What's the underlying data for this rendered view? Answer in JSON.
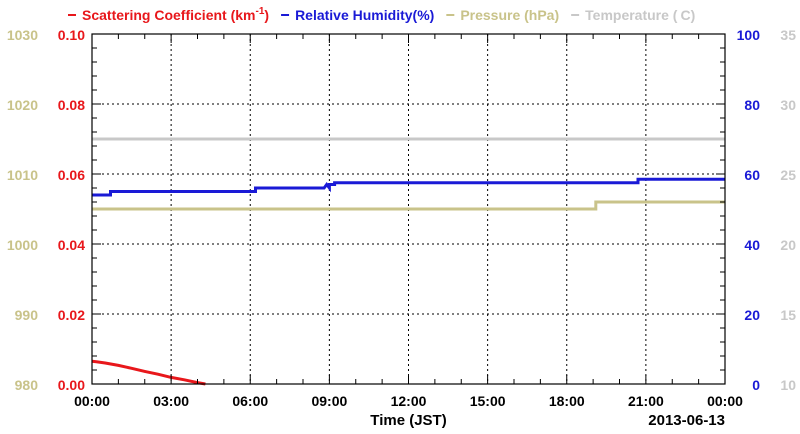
{
  "chart_data": {
    "type": "line",
    "legend": [
      {
        "key": "scattering",
        "color": "#e8171b",
        "text": "Scattering Coefficient (km",
        "sup": "-1",
        "tail": ")"
      },
      {
        "key": "humidity",
        "color": "#1a1ad6",
        "text": "Relative Humidity(%)",
        "sup": "",
        "tail": ""
      },
      {
        "key": "pressure",
        "color": "#c9c38a",
        "text": "Pressure (hPa)",
        "sup": "",
        "tail": ""
      },
      {
        "key": "temperature",
        "color": "#c8c8c8",
        "text": "Temperature (",
        "sup": "",
        "tail": "C)"
      }
    ],
    "xlabel": "Time (JST)",
    "date_label": "2013-06-13",
    "x_ticks": [
      "00:00",
      "03:00",
      "06:00",
      "09:00",
      "12:00",
      "15:00",
      "18:00",
      "21:00",
      "00:00"
    ],
    "x_range_hours": [
      0,
      24
    ],
    "grid": true,
    "axes": {
      "pressure": {
        "color": "#c9c38a",
        "ylim": [
          980,
          1030
        ],
        "ticks": [
          "1030",
          "1020",
          "1010",
          "1000",
          "990",
          "980"
        ]
      },
      "scattering": {
        "color": "#e8171b",
        "ylim": [
          0,
          0.1
        ],
        "ticks": [
          "0.10",
          "0.08",
          "0.06",
          "0.04",
          "0.02",
          "0.00"
        ]
      },
      "humidity": {
        "color": "#1a1ad6",
        "ylim": [
          0,
          100
        ],
        "ticks": [
          "100",
          "80",
          "60",
          "40",
          "20",
          "0"
        ]
      },
      "temperature": {
        "color": "#c8c8c8",
        "ylim": [
          10,
          35
        ],
        "ticks": [
          "35",
          "30",
          "25",
          "20",
          "15",
          "10"
        ]
      }
    },
    "series": [
      {
        "name": "Scattering Coefficient",
        "axis": "scattering",
        "color": "#e8171b",
        "x": [
          0,
          0.2,
          0.5,
          1.0,
          1.5,
          2.0,
          2.5,
          3.0,
          3.5,
          4.0,
          4.3
        ],
        "y": [
          0.0065,
          0.0063,
          0.006,
          0.0053,
          0.0045,
          0.0036,
          0.0028,
          0.0019,
          0.0012,
          0.0004,
          0.0
        ]
      },
      {
        "name": "Relative Humidity",
        "axis": "humidity",
        "color": "#1a1ad6",
        "x": [
          0,
          0.7,
          0.7,
          6.2,
          6.2,
          8.8,
          8.9,
          9.0,
          9.0,
          9.2,
          9.2,
          20.7,
          20.7,
          24
        ],
        "y": [
          54,
          54,
          55,
          55,
          56,
          56,
          57,
          56,
          57,
          57,
          57.5,
          57.5,
          58.5,
          58.5
        ]
      },
      {
        "name": "Pressure",
        "axis": "pressure",
        "color": "#c9c38a",
        "x": [
          0,
          19.1,
          19.1,
          24
        ],
        "y": [
          1005,
          1005,
          1006,
          1006
        ]
      },
      {
        "name": "Temperature",
        "axis": "temperature",
        "color": "#c8c8c8",
        "x": [
          0,
          24
        ],
        "y": [
          27.5,
          27.5
        ]
      }
    ]
  }
}
